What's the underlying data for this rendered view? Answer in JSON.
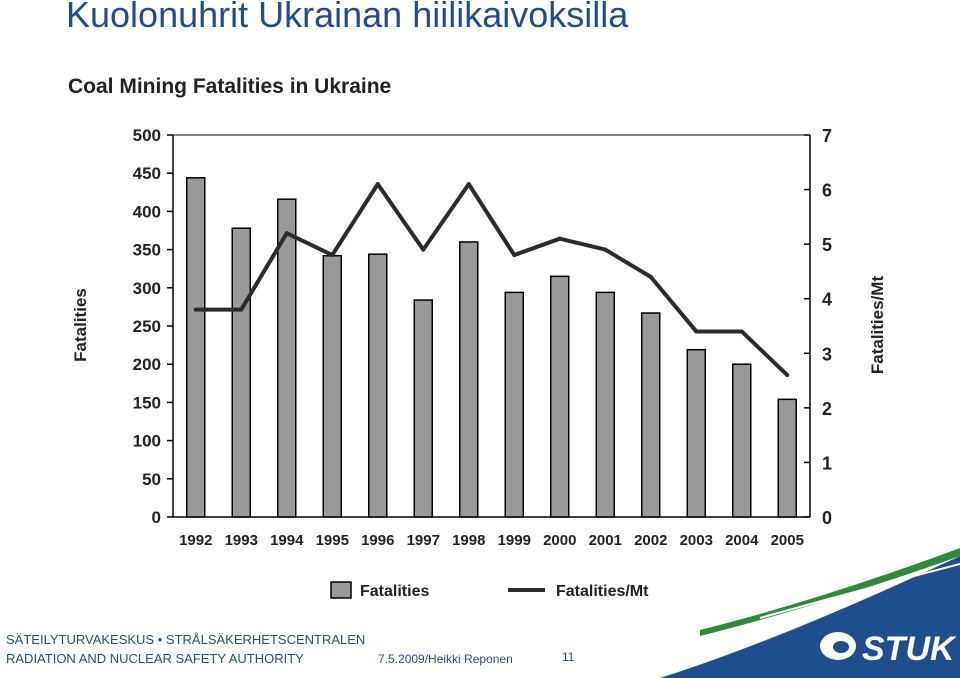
{
  "slide": {
    "title": "Kuolonuhrit Ukrainan hiilikaivoksilla",
    "footer_line1_left": "SÄTEILYTURVAKESKUS",
    "footer_line1_sep": "•",
    "footer_line1_right": "STRÅLSÄKERHETSCENTRALEN",
    "footer_line2": "RADIATION AND NUCLEAR SAFETY AUTHORITY",
    "footer_date": "7.5.2009/Heikki Reponen",
    "page_number": "11",
    "logo_text": "STUK",
    "colors": {
      "title": "#1f4e8f",
      "logo_blue": "#1f4e8f",
      "logo_green": "#2e8b3a"
    }
  },
  "chart_data": {
    "type": "bar",
    "title": "Coal Mining Fatalities in Ukraine",
    "categories": [
      "1992",
      "1993",
      "1994",
      "1995",
      "1996",
      "1997",
      "1998",
      "1999",
      "2000",
      "2001",
      "2002",
      "2003",
      "2004",
      "2005"
    ],
    "series": [
      {
        "name": "Fatalities",
        "type": "bar",
        "axis": "left",
        "values": [
          444,
          378,
          416,
          342,
          344,
          284,
          360,
          294,
          315,
          294,
          267,
          219,
          200,
          154
        ]
      },
      {
        "name": "Fatalities/Mt",
        "type": "line",
        "axis": "right",
        "values": [
          3.8,
          3.8,
          5.2,
          4.8,
          6.1,
          4.9,
          6.1,
          4.8,
          5.1,
          4.9,
          4.4,
          3.4,
          3.4,
          2.6
        ]
      }
    ],
    "ylabel": "Fatalities",
    "ylabel_right": "Fatalities/Mt",
    "ylim": [
      0,
      500
    ],
    "ylim_right": [
      0,
      7
    ],
    "yticks": [
      0,
      50,
      100,
      150,
      200,
      250,
      300,
      350,
      400,
      450,
      500
    ],
    "yticks_right": [
      0,
      1,
      2,
      3,
      4,
      5,
      6,
      7
    ],
    "colors": {
      "bar": "#999999",
      "bar_stroke": "#000000",
      "line": "#2b2b2b"
    },
    "legend": {
      "placement": "bottom",
      "items": [
        "Fatalities",
        "Fatalities/Mt"
      ]
    },
    "grid": false
  }
}
